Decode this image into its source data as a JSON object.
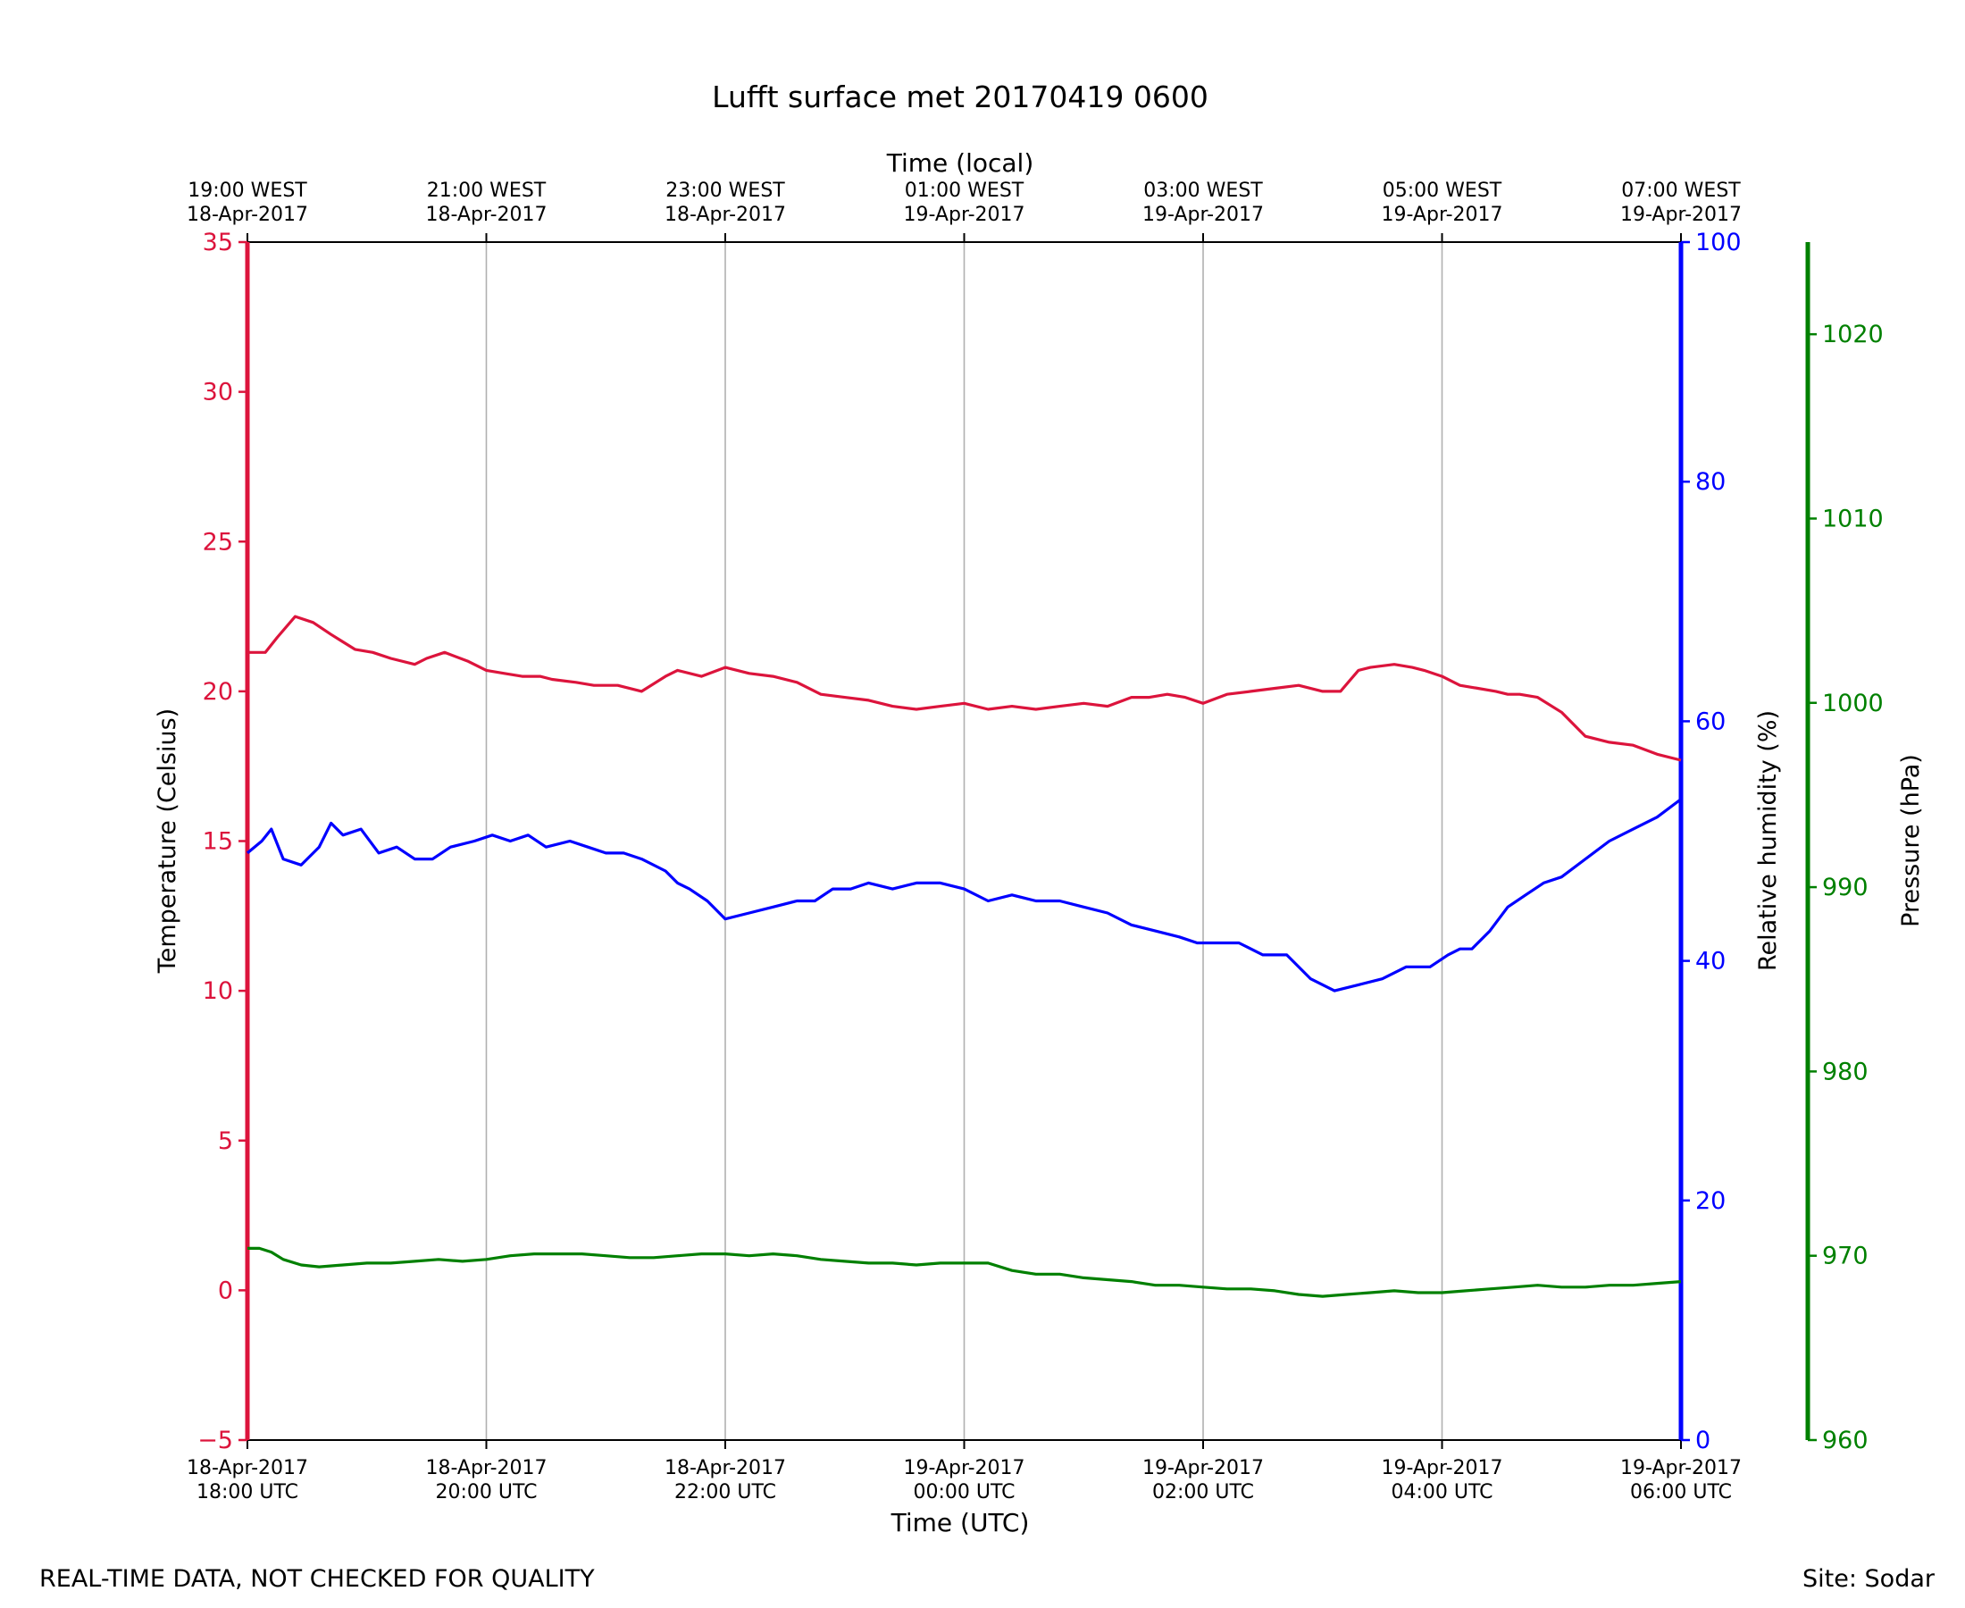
{
  "chart_data": {
    "type": "line",
    "title": "Lufft surface met 20170419 0600",
    "top_axis_label": "Time (local)",
    "xlabel": "Time (UTC)",
    "footer_left": "REAL-TIME DATA, NOT CHECKED FOR QUALITY",
    "footer_right": "Site: Sodar",
    "xlim_hours": [
      0,
      12
    ],
    "grid": "vertical",
    "bottom_ticks": [
      {
        "date": "18-Apr-2017",
        "time": "18:00 UTC"
      },
      {
        "date": "18-Apr-2017",
        "time": "20:00 UTC"
      },
      {
        "date": "18-Apr-2017",
        "time": "22:00 UTC"
      },
      {
        "date": "19-Apr-2017",
        "time": "00:00 UTC"
      },
      {
        "date": "19-Apr-2017",
        "time": "02:00 UTC"
      },
      {
        "date": "19-Apr-2017",
        "time": "04:00 UTC"
      },
      {
        "date": "19-Apr-2017",
        "time": "06:00 UTC"
      }
    ],
    "top_ticks": [
      {
        "time": "19:00 WEST",
        "date": "18-Apr-2017"
      },
      {
        "time": "21:00 WEST",
        "date": "18-Apr-2017"
      },
      {
        "time": "23:00 WEST",
        "date": "18-Apr-2017"
      },
      {
        "time": "01:00 WEST",
        "date": "19-Apr-2017"
      },
      {
        "time": "03:00 WEST",
        "date": "19-Apr-2017"
      },
      {
        "time": "05:00 WEST",
        "date": "19-Apr-2017"
      },
      {
        "time": "07:00 WEST",
        "date": "19-Apr-2017"
      }
    ],
    "axes": {
      "temperature": {
        "label": "Temperature (Celsius)",
        "ylim": [
          -5,
          35
        ],
        "ticks": [
          -5,
          0,
          5,
          10,
          15,
          20,
          25,
          30,
          35
        ],
        "tick_labels": [
          "−5",
          "0",
          "5",
          "10",
          "15",
          "20",
          "25",
          "30",
          "35"
        ],
        "color": "#dc143c"
      },
      "humidity": {
        "label": "Relative humidity (%)",
        "ylim": [
          0,
          100
        ],
        "ticks": [
          0,
          20,
          40,
          60,
          80,
          100
        ],
        "tick_labels": [
          "0",
          "20",
          "40",
          "60",
          "80",
          "100"
        ],
        "color": "#0000ff"
      },
      "pressure": {
        "label": "Pressure (hPa)",
        "ylim": [
          960,
          1025
        ],
        "ticks": [
          960,
          970,
          980,
          990,
          1000,
          1010,
          1020
        ],
        "tick_labels": [
          "960",
          "970",
          "980",
          "990",
          "1000",
          "1010",
          "1020"
        ],
        "color": "#008000"
      }
    },
    "series": [
      {
        "name": "Temperature (Celsius)",
        "axis": "temperature",
        "color": "#dc143c",
        "x": [
          0,
          0.15,
          0.25,
          0.4,
          0.55,
          0.7,
          0.9,
          1.05,
          1.2,
          1.4,
          1.5,
          1.65,
          1.85,
          2.0,
          2.15,
          2.3,
          2.45,
          2.55,
          2.75,
          2.9,
          3.1,
          3.3,
          3.5,
          3.6,
          3.8,
          4.0,
          4.2,
          4.4,
          4.6,
          4.8,
          5.0,
          5.2,
          5.4,
          5.6,
          5.8,
          6.0,
          6.2,
          6.4,
          6.6,
          6.8,
          7.0,
          7.2,
          7.4,
          7.55,
          7.7,
          7.85,
          8.0,
          8.2,
          8.4,
          8.6,
          8.8,
          9.0,
          9.15,
          9.3,
          9.4,
          9.6,
          9.75,
          9.85,
          10.0,
          10.15,
          10.3,
          10.45,
          10.55,
          10.65,
          10.8,
          11.0,
          11.2,
          11.4,
          11.6,
          11.8,
          12.0
        ],
        "y": [
          21.3,
          21.3,
          21.8,
          22.5,
          22.3,
          21.9,
          21.4,
          21.3,
          21.1,
          20.9,
          21.1,
          21.3,
          21.0,
          20.7,
          20.6,
          20.5,
          20.5,
          20.4,
          20.3,
          20.2,
          20.2,
          20.0,
          20.5,
          20.7,
          20.5,
          20.8,
          20.6,
          20.5,
          20.3,
          19.9,
          19.8,
          19.7,
          19.5,
          19.4,
          19.5,
          19.6,
          19.4,
          19.5,
          19.4,
          19.5,
          19.6,
          19.5,
          19.8,
          19.8,
          19.9,
          19.8,
          19.6,
          19.9,
          20.0,
          20.1,
          20.2,
          20.0,
          20.0,
          20.7,
          20.8,
          20.9,
          20.8,
          20.7,
          20.5,
          20.2,
          20.1,
          20.0,
          19.9,
          19.9,
          19.8,
          19.3,
          18.5,
          18.3,
          18.2,
          17.9,
          17.7
        ]
      },
      {
        "name": "Relative humidity (%)",
        "axis": "humidity",
        "color": "#0000ff",
        "x": [
          0,
          0.12,
          0.2,
          0.3,
          0.45,
          0.6,
          0.7,
          0.8,
          0.95,
          1.1,
          1.25,
          1.4,
          1.55,
          1.7,
          1.9,
          2.05,
          2.2,
          2.35,
          2.5,
          2.7,
          2.85,
          3.0,
          3.15,
          3.3,
          3.5,
          3.6,
          3.7,
          3.85,
          4.0,
          4.2,
          4.4,
          4.6,
          4.75,
          4.9,
          5.05,
          5.2,
          5.4,
          5.6,
          5.8,
          6.0,
          6.2,
          6.4,
          6.6,
          6.8,
          7.0,
          7.2,
          7.4,
          7.6,
          7.8,
          7.95,
          8.05,
          8.15,
          8.3,
          8.5,
          8.7,
          8.9,
          9.1,
          9.3,
          9.5,
          9.7,
          9.9,
          10.05,
          10.15,
          10.25,
          10.4,
          10.55,
          10.7,
          10.85,
          11.0,
          11.2,
          11.4,
          11.6,
          11.8,
          12.0
        ],
        "y": [
          49,
          50,
          51,
          48.5,
          48,
          49.5,
          51.5,
          50.5,
          51,
          49,
          49.5,
          48.5,
          48.5,
          49.5,
          50,
          50.5,
          50,
          50.5,
          49.5,
          50,
          49.5,
          49,
          49,
          48.5,
          47.5,
          46.5,
          46,
          45,
          43.5,
          44,
          44.5,
          45,
          45,
          46,
          46,
          46.5,
          46,
          46.5,
          46.5,
          46,
          45,
          45.5,
          45,
          45,
          44.5,
          44,
          43,
          42.5,
          42,
          41.5,
          41.5,
          41.5,
          41.5,
          40.5,
          40.5,
          38.5,
          37.5,
          38,
          38.5,
          39.5,
          39.5,
          40.5,
          41,
          41,
          42.5,
          44.5,
          45.5,
          46.5,
          47,
          48.5,
          50,
          51,
          52,
          53.5
        ]
      },
      {
        "name": "Pressure (hPa)",
        "axis": "pressure",
        "color": "#008000",
        "x": [
          0,
          0.1,
          0.2,
          0.3,
          0.45,
          0.6,
          0.8,
          1.0,
          1.2,
          1.4,
          1.6,
          1.8,
          2.0,
          2.2,
          2.4,
          2.6,
          2.8,
          3.0,
          3.2,
          3.4,
          3.6,
          3.8,
          4.0,
          4.2,
          4.4,
          4.6,
          4.8,
          5.0,
          5.2,
          5.4,
          5.6,
          5.8,
          6.0,
          6.2,
          6.4,
          6.6,
          6.8,
          7.0,
          7.2,
          7.4,
          7.6,
          7.8,
          8.0,
          8.2,
          8.4,
          8.6,
          8.8,
          9.0,
          9.2,
          9.4,
          9.6,
          9.8,
          10.0,
          10.2,
          10.4,
          10.6,
          10.8,
          11.0,
          11.2,
          11.4,
          11.6,
          11.8,
          12.0
        ],
        "y": [
          970.4,
          970.4,
          970.2,
          969.8,
          969.5,
          969.4,
          969.5,
          969.6,
          969.6,
          969.7,
          969.8,
          969.7,
          969.8,
          970.0,
          970.1,
          970.1,
          970.1,
          970.0,
          969.9,
          969.9,
          970.0,
          970.1,
          970.1,
          970.0,
          970.1,
          970.0,
          969.8,
          969.7,
          969.6,
          969.6,
          969.5,
          969.6,
          969.6,
          969.6,
          969.2,
          969.0,
          969.0,
          968.8,
          968.7,
          968.6,
          968.4,
          968.4,
          968.3,
          968.2,
          968.2,
          968.1,
          967.9,
          967.8,
          967.9,
          968.0,
          968.1,
          968.0,
          968.0,
          968.1,
          968.2,
          968.3,
          968.4,
          968.3,
          968.3,
          968.4,
          968.4,
          968.5,
          968.6
        ]
      }
    ]
  }
}
